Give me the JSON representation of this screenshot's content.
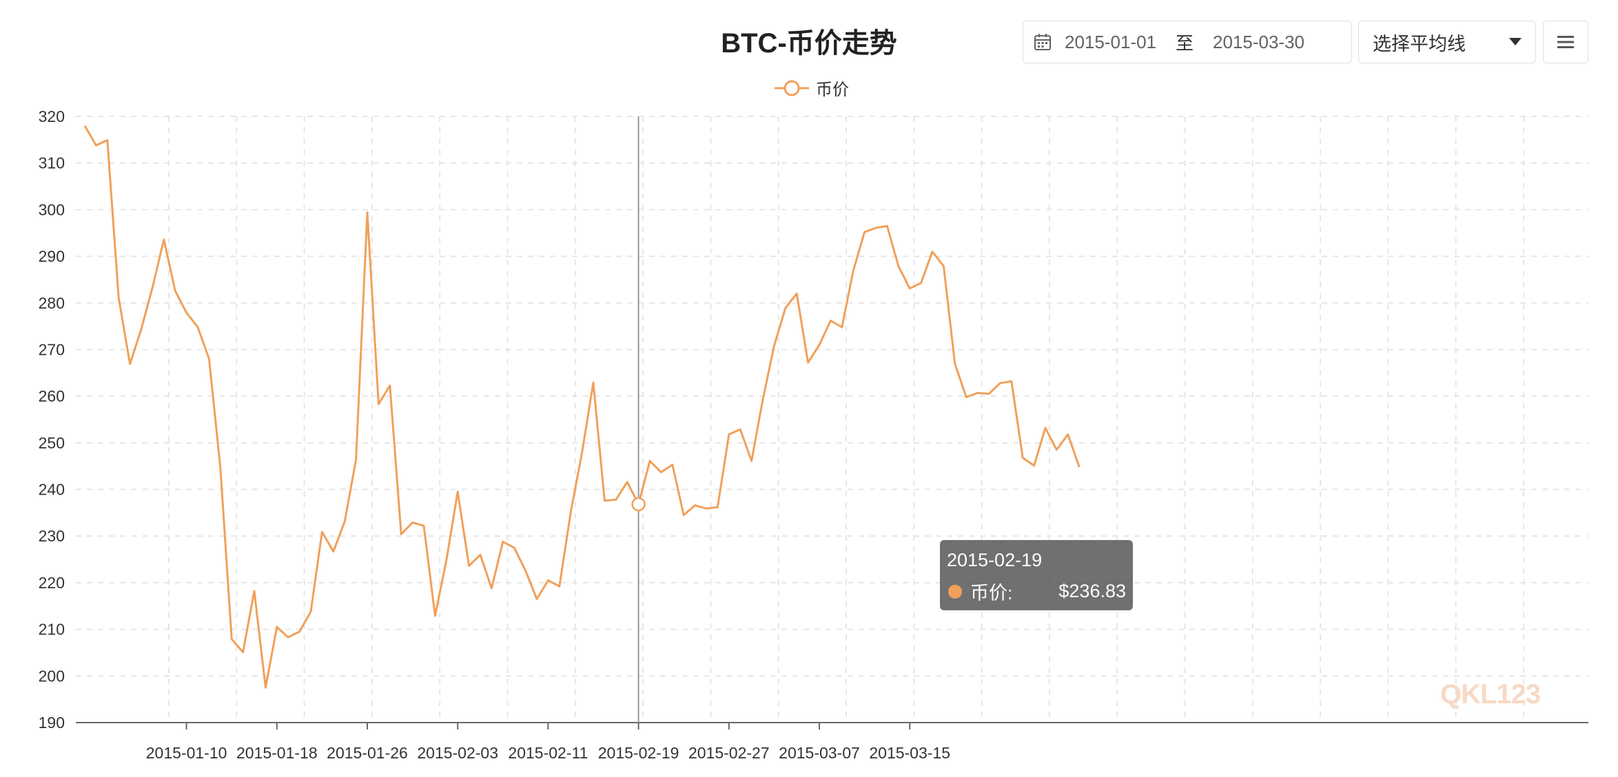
{
  "toolbar": {
    "date_start": "2015-01-01",
    "date_sep": "至",
    "date_end": "2015-03-30",
    "ma_select_label": "选择平均线"
  },
  "tooltip": {
    "date": "2015-02-19",
    "label": "币价:",
    "value": "$236.83"
  },
  "watermark": "QKL123",
  "colors": {
    "line": "#f0a05a",
    "grid": "#e6e6e6",
    "crosshair": "#999999"
  },
  "chart_data": {
    "type": "line",
    "title": "BTC-币价走势",
    "legend": [
      "币价"
    ],
    "legend_placement": "top-center",
    "grid": true,
    "ylim": [
      190,
      320
    ],
    "yticks": [
      190,
      200,
      210,
      220,
      230,
      240,
      250,
      260,
      270,
      280,
      290,
      300,
      310,
      320
    ],
    "xticks": [
      "2015-01-10",
      "2015-01-18",
      "2015-01-26",
      "2015-02-03",
      "2015-02-11",
      "2015-02-19",
      "2015-02-27",
      "2015-03-07",
      "2015-03-15"
    ],
    "x": [
      "2015-01-01",
      "2015-01-02",
      "2015-01-03",
      "2015-01-04",
      "2015-01-05",
      "2015-01-06",
      "2015-01-07",
      "2015-01-08",
      "2015-01-09",
      "2015-01-10",
      "2015-01-11",
      "2015-01-12",
      "2015-01-13",
      "2015-01-14",
      "2015-01-15",
      "2015-01-16",
      "2015-01-17",
      "2015-01-18",
      "2015-01-19",
      "2015-01-20",
      "2015-01-21",
      "2015-01-22",
      "2015-01-23",
      "2015-01-24",
      "2015-01-25",
      "2015-01-26",
      "2015-01-27",
      "2015-01-28",
      "2015-01-29",
      "2015-01-30",
      "2015-01-31",
      "2015-02-01",
      "2015-02-02",
      "2015-02-03",
      "2015-02-04",
      "2015-02-05",
      "2015-02-06",
      "2015-02-07",
      "2015-02-08",
      "2015-02-09",
      "2015-02-10",
      "2015-02-11",
      "2015-02-12",
      "2015-02-13",
      "2015-02-14",
      "2015-02-15",
      "2015-02-16",
      "2015-02-17",
      "2015-02-18",
      "2015-02-19",
      "2015-02-20",
      "2015-02-21",
      "2015-02-22",
      "2015-02-23",
      "2015-02-24",
      "2015-02-25",
      "2015-02-26",
      "2015-02-27",
      "2015-02-28",
      "2015-03-01",
      "2015-03-02",
      "2015-03-03",
      "2015-03-04",
      "2015-03-05",
      "2015-03-06",
      "2015-03-07",
      "2015-03-08",
      "2015-03-09",
      "2015-03-10",
      "2015-03-11",
      "2015-03-12",
      "2015-03-13",
      "2015-03-14",
      "2015-03-15",
      "2015-03-16",
      "2015-03-17",
      "2015-03-18",
      "2015-03-19",
      "2015-03-20",
      "2015-03-21",
      "2015-03-22",
      "2015-03-23",
      "2015-03-24",
      "2015-03-25",
      "2015-03-26",
      "2015-03-27",
      "2015-03-28",
      "2015-03-29",
      "2015-03-30"
    ],
    "series": [
      {
        "name": "币价",
        "values": [
          318.0,
          313.8,
          314.9,
          281.1,
          266.9,
          274.4,
          283.4,
          293.6,
          282.6,
          277.9,
          274.8,
          268.0,
          244.7,
          207.9,
          205.1,
          218.2,
          197.5,
          210.5,
          208.3,
          209.5,
          213.8,
          230.9,
          226.7,
          233.1,
          246.4,
          299.4,
          258.3,
          262.3,
          230.4,
          232.9,
          232.2,
          212.9,
          224.8,
          239.5,
          223.6,
          226.0,
          218.8,
          228.8,
          227.5,
          222.6,
          216.5,
          220.5,
          219.2,
          235.1,
          247.9,
          262.9,
          237.6,
          237.8,
          241.6,
          236.83,
          246.1,
          243.7,
          245.3,
          234.5,
          236.6,
          235.9,
          236.2,
          251.8,
          252.9,
          246.1,
          259.3,
          270.8,
          278.9,
          282.0,
          267.2,
          271.0,
          276.2,
          274.8,
          286.9,
          295.2,
          296.1,
          296.5,
          287.9,
          283.1,
          284.3,
          291.0,
          287.9,
          266.9,
          259.8,
          260.7,
          260.5,
          262.8,
          263.2,
          246.8,
          245.1,
          253.2,
          248.5,
          251.8,
          244.8
        ]
      }
    ]
  }
}
